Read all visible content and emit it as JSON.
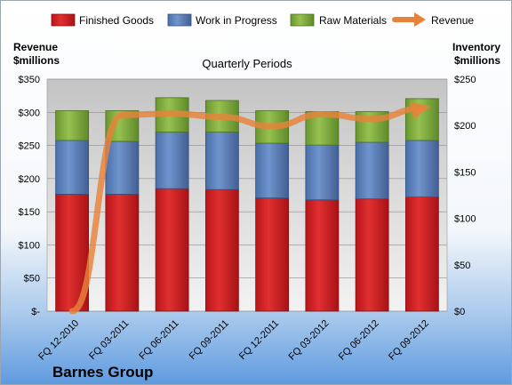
{
  "chart_data": {
    "type": "bar",
    "title": "Quarterly Periods",
    "brand": "Barnes Group",
    "left_axis_title": [
      "Revenue",
      "$millions"
    ],
    "right_axis_title": [
      "Inventory",
      "$millions"
    ],
    "categories": [
      "FQ 12-2010",
      "FQ 03-2011",
      "FQ 06-2011",
      "FQ 09-2011",
      "FQ 12-2011",
      "FQ 03-2012",
      "FQ 06-2012",
      "FQ 09-2012"
    ],
    "left_ylim": [
      0,
      350
    ],
    "left_ticks": [
      0,
      50,
      100,
      150,
      200,
      250,
      300,
      350
    ],
    "left_tick_labels": [
      "$-",
      "$50",
      "$100",
      "$150",
      "$200",
      "$250",
      "$300",
      "$350"
    ],
    "right_ylim": [
      0,
      250
    ],
    "right_ticks": [
      0,
      50,
      100,
      150,
      200,
      250
    ],
    "right_tick_labels": [
      "$0",
      "$50",
      "$100",
      "$150",
      "$200",
      "$250"
    ],
    "stacked": true,
    "series": [
      {
        "name": "Finished Goods",
        "axis": "right",
        "color": "#d0201f",
        "values": [
          126,
          126,
          132,
          131,
          122,
          120,
          121,
          123
        ]
      },
      {
        "name": "Work in Progress",
        "axis": "right",
        "color": "#5b7fb9",
        "values": [
          58,
          57,
          61,
          62,
          59,
          59,
          61,
          61
        ]
      },
      {
        "name": "Raw Materials",
        "axis": "right",
        "color": "#7eaa3c",
        "values": [
          32,
          33,
          37,
          34,
          35,
          36,
          33,
          45
        ]
      }
    ],
    "line_series": {
      "name": "Revenue",
      "axis": "left",
      "color": "#e8823a",
      "values": [
        0,
        296,
        298,
        293,
        279,
        297,
        290,
        306
      ]
    },
    "grid": true,
    "legend": "top"
  }
}
